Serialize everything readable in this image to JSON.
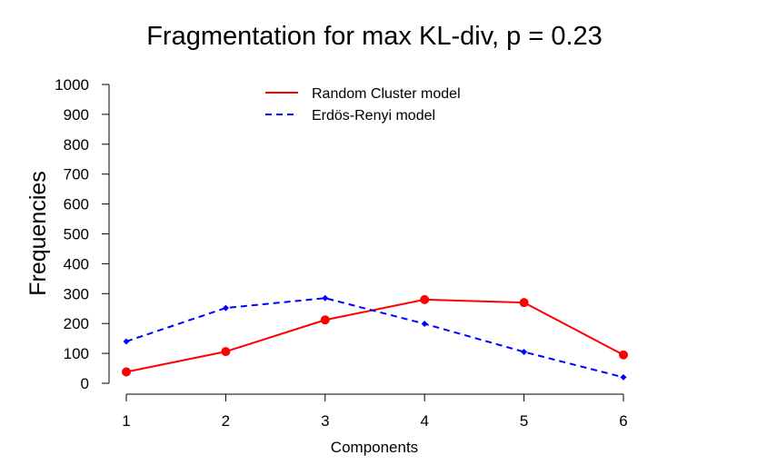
{
  "chart_data": {
    "type": "line",
    "title": "Fragmentation for max KL-div, p =  0.23",
    "xlabel": "Components",
    "ylabel": "Frequencies",
    "x": [
      1,
      2,
      3,
      4,
      5,
      6
    ],
    "xticks": [
      "1",
      "2",
      "3",
      "4",
      "5",
      "6"
    ],
    "xlim": [
      1,
      6
    ],
    "ylim": [
      0,
      1000
    ],
    "yticks": [
      "0",
      "100",
      "200",
      "300",
      "400",
      "500",
      "600",
      "700",
      "800",
      "900",
      "1000"
    ],
    "grid": false,
    "legend_position": "top-center",
    "series": [
      {
        "name": "Random Cluster model",
        "values": [
          38,
          106,
          212,
          280,
          270,
          95
        ],
        "color": "#ff0000",
        "line_style": "solid",
        "marker": "circle"
      },
      {
        "name": "Erdös-Renyi model",
        "values": [
          140,
          252,
          285,
          199,
          105,
          20
        ],
        "color": "#0000ff",
        "line_style": "dashed",
        "marker": "diamond"
      }
    ]
  }
}
